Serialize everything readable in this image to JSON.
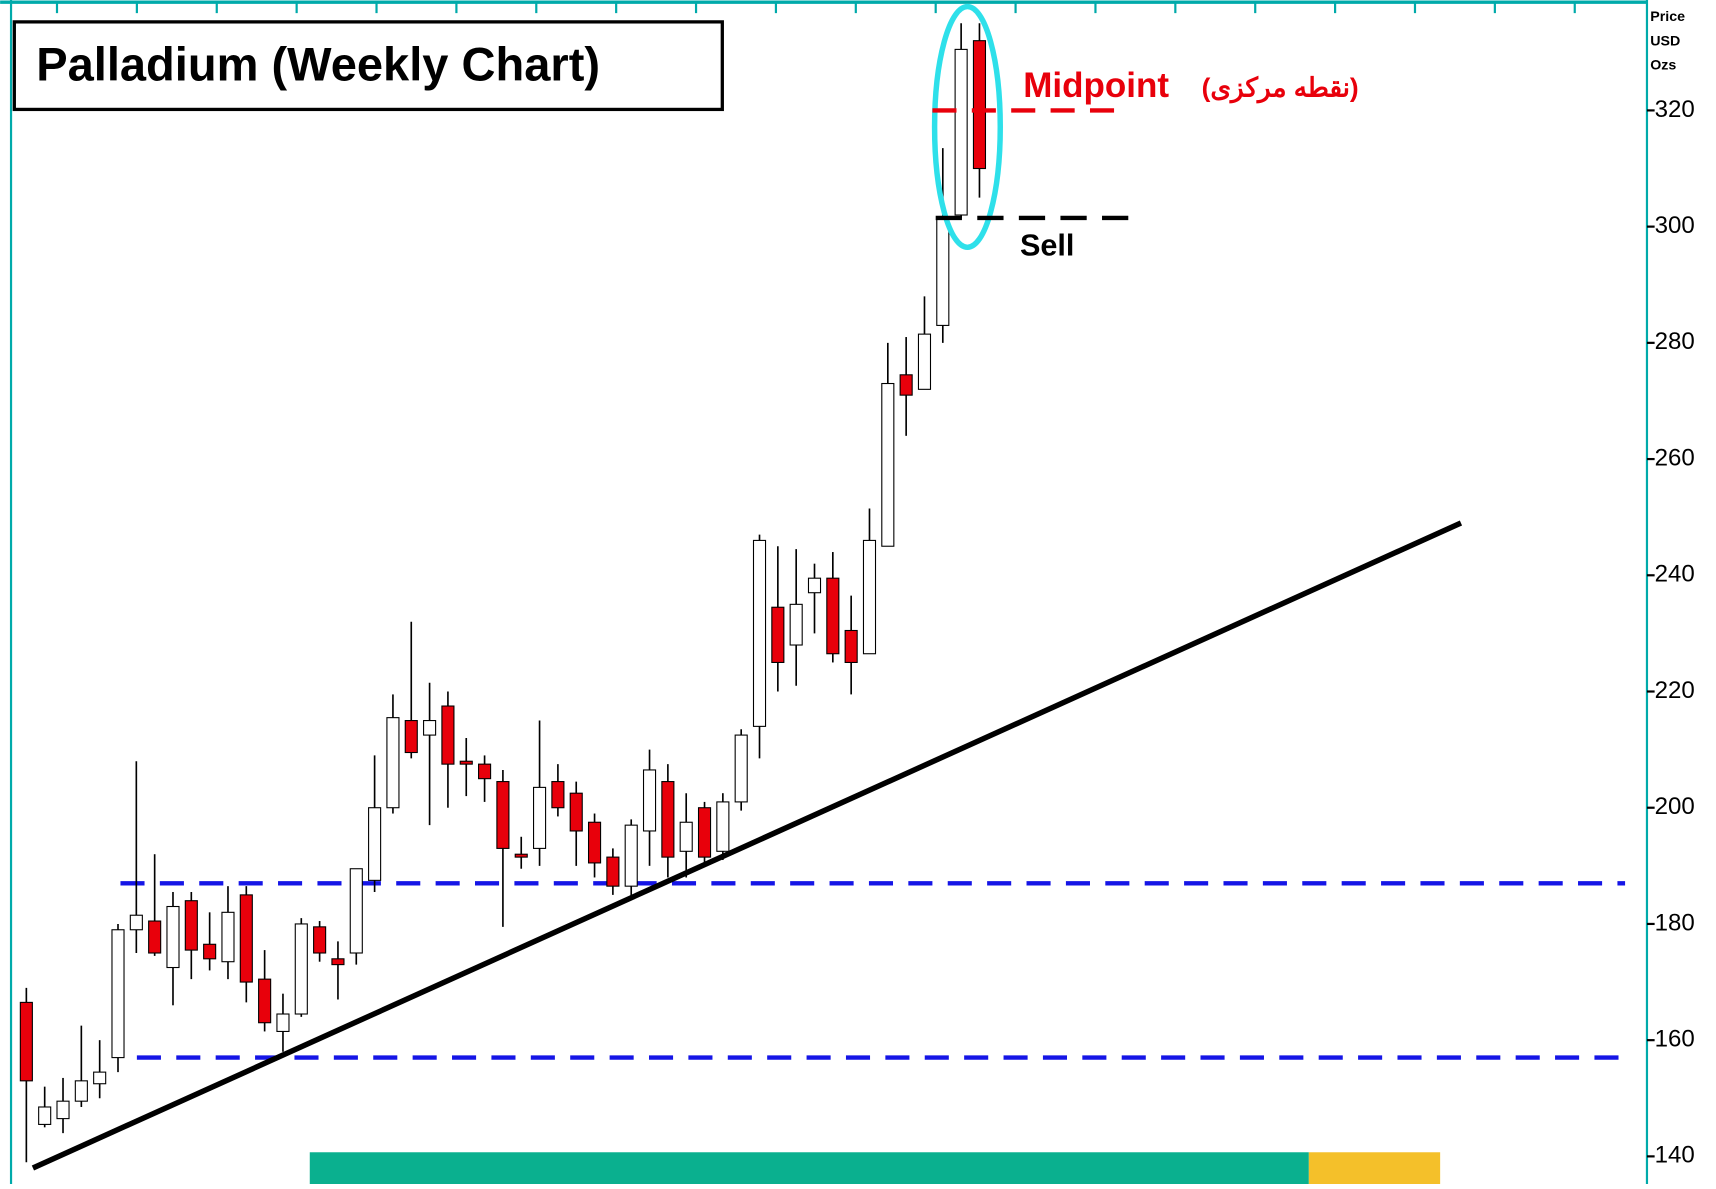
{
  "chart_data": {
    "type": "candlestick",
    "title": "Palladium (Weekly Chart)",
    "y_axis_label": [
      "Price",
      "USD",
      "Ozs"
    ],
    "open": [
      166.5,
      145.5,
      146.5,
      149.5,
      152.5,
      157,
      179,
      180.5,
      172.5,
      184,
      176.5,
      173.5,
      185,
      170.5,
      161.5,
      164.5,
      179.5,
      174,
      175,
      187.5,
      200,
      215,
      212.5,
      217.5,
      208,
      207.5,
      204.5,
      192,
      193,
      204.5,
      202.5,
      197.5,
      191.5,
      186.5,
      196,
      204.5,
      192.5,
      200,
      192.5,
      201,
      214,
      234.5,
      228,
      237,
      239.5,
      230.5,
      226.5,
      245,
      274.5,
      272,
      283,
      302,
      332
    ],
    "high": [
      169,
      152,
      153.5,
      162.5,
      160,
      180,
      208,
      192,
      185.5,
      185.5,
      182,
      186.5,
      186.5,
      175.5,
      168,
      181,
      180.5,
      177,
      189.5,
      209,
      219.5,
      232,
      221.5,
      220,
      212,
      209,
      206.5,
      195,
      215,
      207.5,
      204.5,
      199,
      193,
      198,
      210,
      207.5,
      202.5,
      201,
      202.5,
      213.5,
      247,
      245,
      244.5,
      242,
      244,
      236.5,
      251.5,
      280,
      281,
      288,
      313.5,
      335,
      335
    ],
    "low": [
      139,
      145,
      144,
      148.5,
      150,
      154.5,
      175,
      174.5,
      166,
      170.5,
      172,
      170.5,
      166.5,
      161.5,
      158,
      164,
      173.5,
      167,
      173,
      185.5,
      199,
      208.5,
      197,
      200,
      202,
      201,
      179.5,
      189.5,
      190,
      198.5,
      190,
      188,
      185,
      184.5,
      190,
      188,
      188,
      190,
      191,
      199.5,
      208.5,
      220,
      221,
      230,
      225,
      219.5,
      226.5,
      245,
      264,
      272,
      280,
      301.5,
      305
    ],
    "close": [
      153,
      148.5,
      149.5,
      153,
      154.5,
      179,
      181.5,
      175,
      183,
      175.5,
      174,
      182,
      170,
      163,
      164.5,
      180,
      175,
      173,
      189.5,
      200,
      215.5,
      209.5,
      215,
      207.5,
      207.5,
      205,
      193,
      191.5,
      203.5,
      200,
      196,
      190.5,
      186.5,
      197,
      206.5,
      191.5,
      197.5,
      191.5,
      201,
      212.5,
      246,
      225,
      235,
      239.5,
      226.5,
      225,
      246,
      273,
      271,
      281.5,
      301.5,
      330.5,
      310
    ],
    "up_color": "#ffffff",
    "down_color": "#e8000b",
    "ylim": [
      136,
      339
    ],
    "yticks": [
      140,
      160,
      180,
      200,
      220,
      240,
      260,
      280,
      300,
      320
    ],
    "support_levels": [
      187,
      157
    ],
    "trendline": {
      "from": 138,
      "to": 249
    },
    "midpoint": {
      "label": "Midpoint",
      "note": "(نقطه مرکزی)",
      "value": 320
    },
    "sell": {
      "label": "Sell",
      "value": 301.5
    }
  }
}
